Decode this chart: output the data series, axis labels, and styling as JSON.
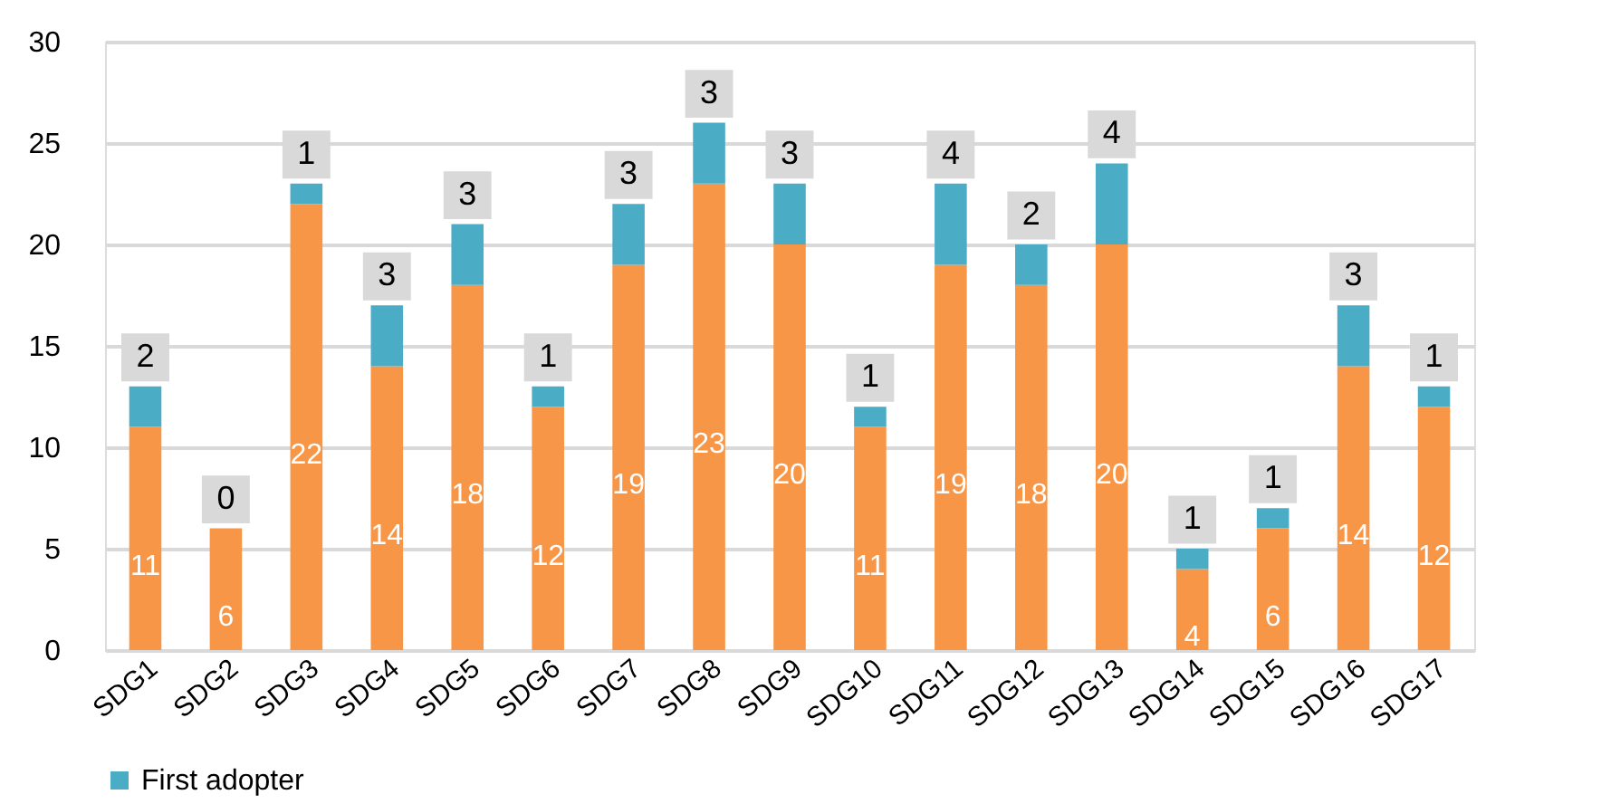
{
  "chart_data": {
    "type": "bar",
    "stacked": true,
    "data_labels": true,
    "grid": "y",
    "legend": "bottom",
    "categories": [
      "SDG1",
      "SDG2",
      "SDG3",
      "SDG4",
      "SDG5",
      "SDG6",
      "SDG7",
      "SDG8",
      "SDG9",
      "SDG10",
      "SDG11",
      "SDG12",
      "SDG13",
      "SDG14",
      "SDG15",
      "SDG16",
      "SDG17"
    ],
    "series": [
      {
        "color": "#f79646",
        "values": [
          11,
          6,
          22,
          14,
          18,
          12,
          19,
          23,
          20,
          11,
          19,
          18,
          20,
          4,
          6,
          14,
          12
        ]
      },
      {
        "name": "First adopter",
        "color": "#4bacc6",
        "values": [
          2,
          0,
          1,
          3,
          3,
          1,
          3,
          3,
          3,
          1,
          4,
          2,
          4,
          1,
          1,
          3,
          1
        ]
      }
    ],
    "ylim": [
      0,
      30
    ],
    "yticks": [
      0,
      5,
      10,
      15,
      20,
      25,
      30
    ]
  }
}
